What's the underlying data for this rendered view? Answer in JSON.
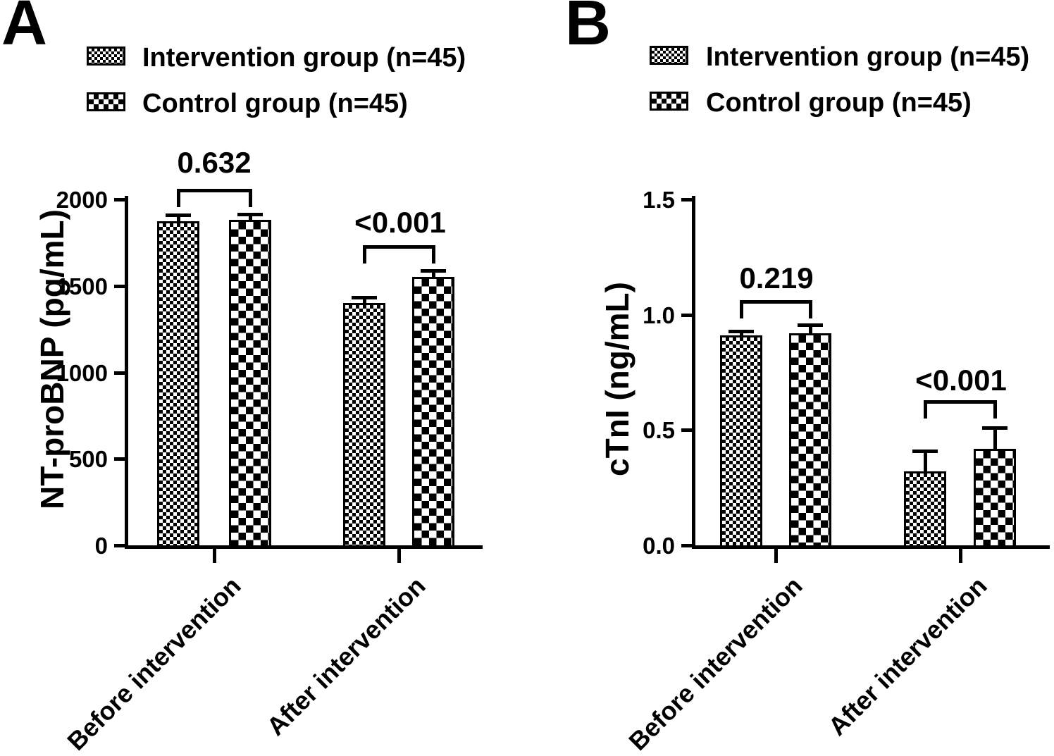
{
  "figure": {
    "background_color": "#ffffff",
    "ink_color": "#000000"
  },
  "chart_data": [
    {
      "type": "bar",
      "panel_letter": "A",
      "ylabel": "NT-proBNP (pg/mL)",
      "ylim": [
        0,
        2000
      ],
      "ytick_values": [
        0,
        500,
        1000,
        1500,
        2000
      ],
      "ytick_labels": [
        "0",
        "500",
        "1000",
        "1500",
        "2000"
      ],
      "categories": [
        "Before intervention",
        "After intervention"
      ],
      "series": [
        {
          "name": "Intervention group (n=45)",
          "pattern": "fine-checker",
          "values": [
            1875,
            1400
          ],
          "errors": [
            35,
            35
          ]
        },
        {
          "name": "Control group (n=45)",
          "pattern": "coarse-checker",
          "values": [
            1880,
            1550
          ],
          "errors": [
            35,
            40
          ]
        }
      ],
      "p_values": [
        {
          "at": "Before intervention",
          "label": "0.632"
        },
        {
          "at": "After intervention",
          "label": "<0.001"
        }
      ],
      "legend_position": "top-left",
      "grid": false,
      "error_bars": "upper SD, T-cap"
    },
    {
      "type": "bar",
      "panel_letter": "B",
      "ylabel": "cTnI (ng/mL)",
      "ylim": [
        0,
        1.5
      ],
      "ytick_values": [
        0,
        0.5,
        1.0,
        1.5
      ],
      "ytick_labels": [
        "0.0",
        "0.5",
        "1.0",
        "1.5"
      ],
      "categories": [
        "Before intervention",
        "After intervention"
      ],
      "series": [
        {
          "name": "Intervention group (n=45)",
          "pattern": "fine-checker",
          "values": [
            0.91,
            0.32
          ],
          "errors": [
            0.02,
            0.09
          ]
        },
        {
          "name": "Control group (n=45)",
          "pattern": "coarse-checker",
          "values": [
            0.92,
            0.42
          ],
          "errors": [
            0.035,
            0.09
          ]
        }
      ],
      "p_values": [
        {
          "at": "Before intervention",
          "label": "0.219"
        },
        {
          "at": "After intervention",
          "label": "<0.001"
        }
      ],
      "legend_position": "top-left",
      "grid": false,
      "error_bars": "upper SD, T-cap"
    }
  ]
}
